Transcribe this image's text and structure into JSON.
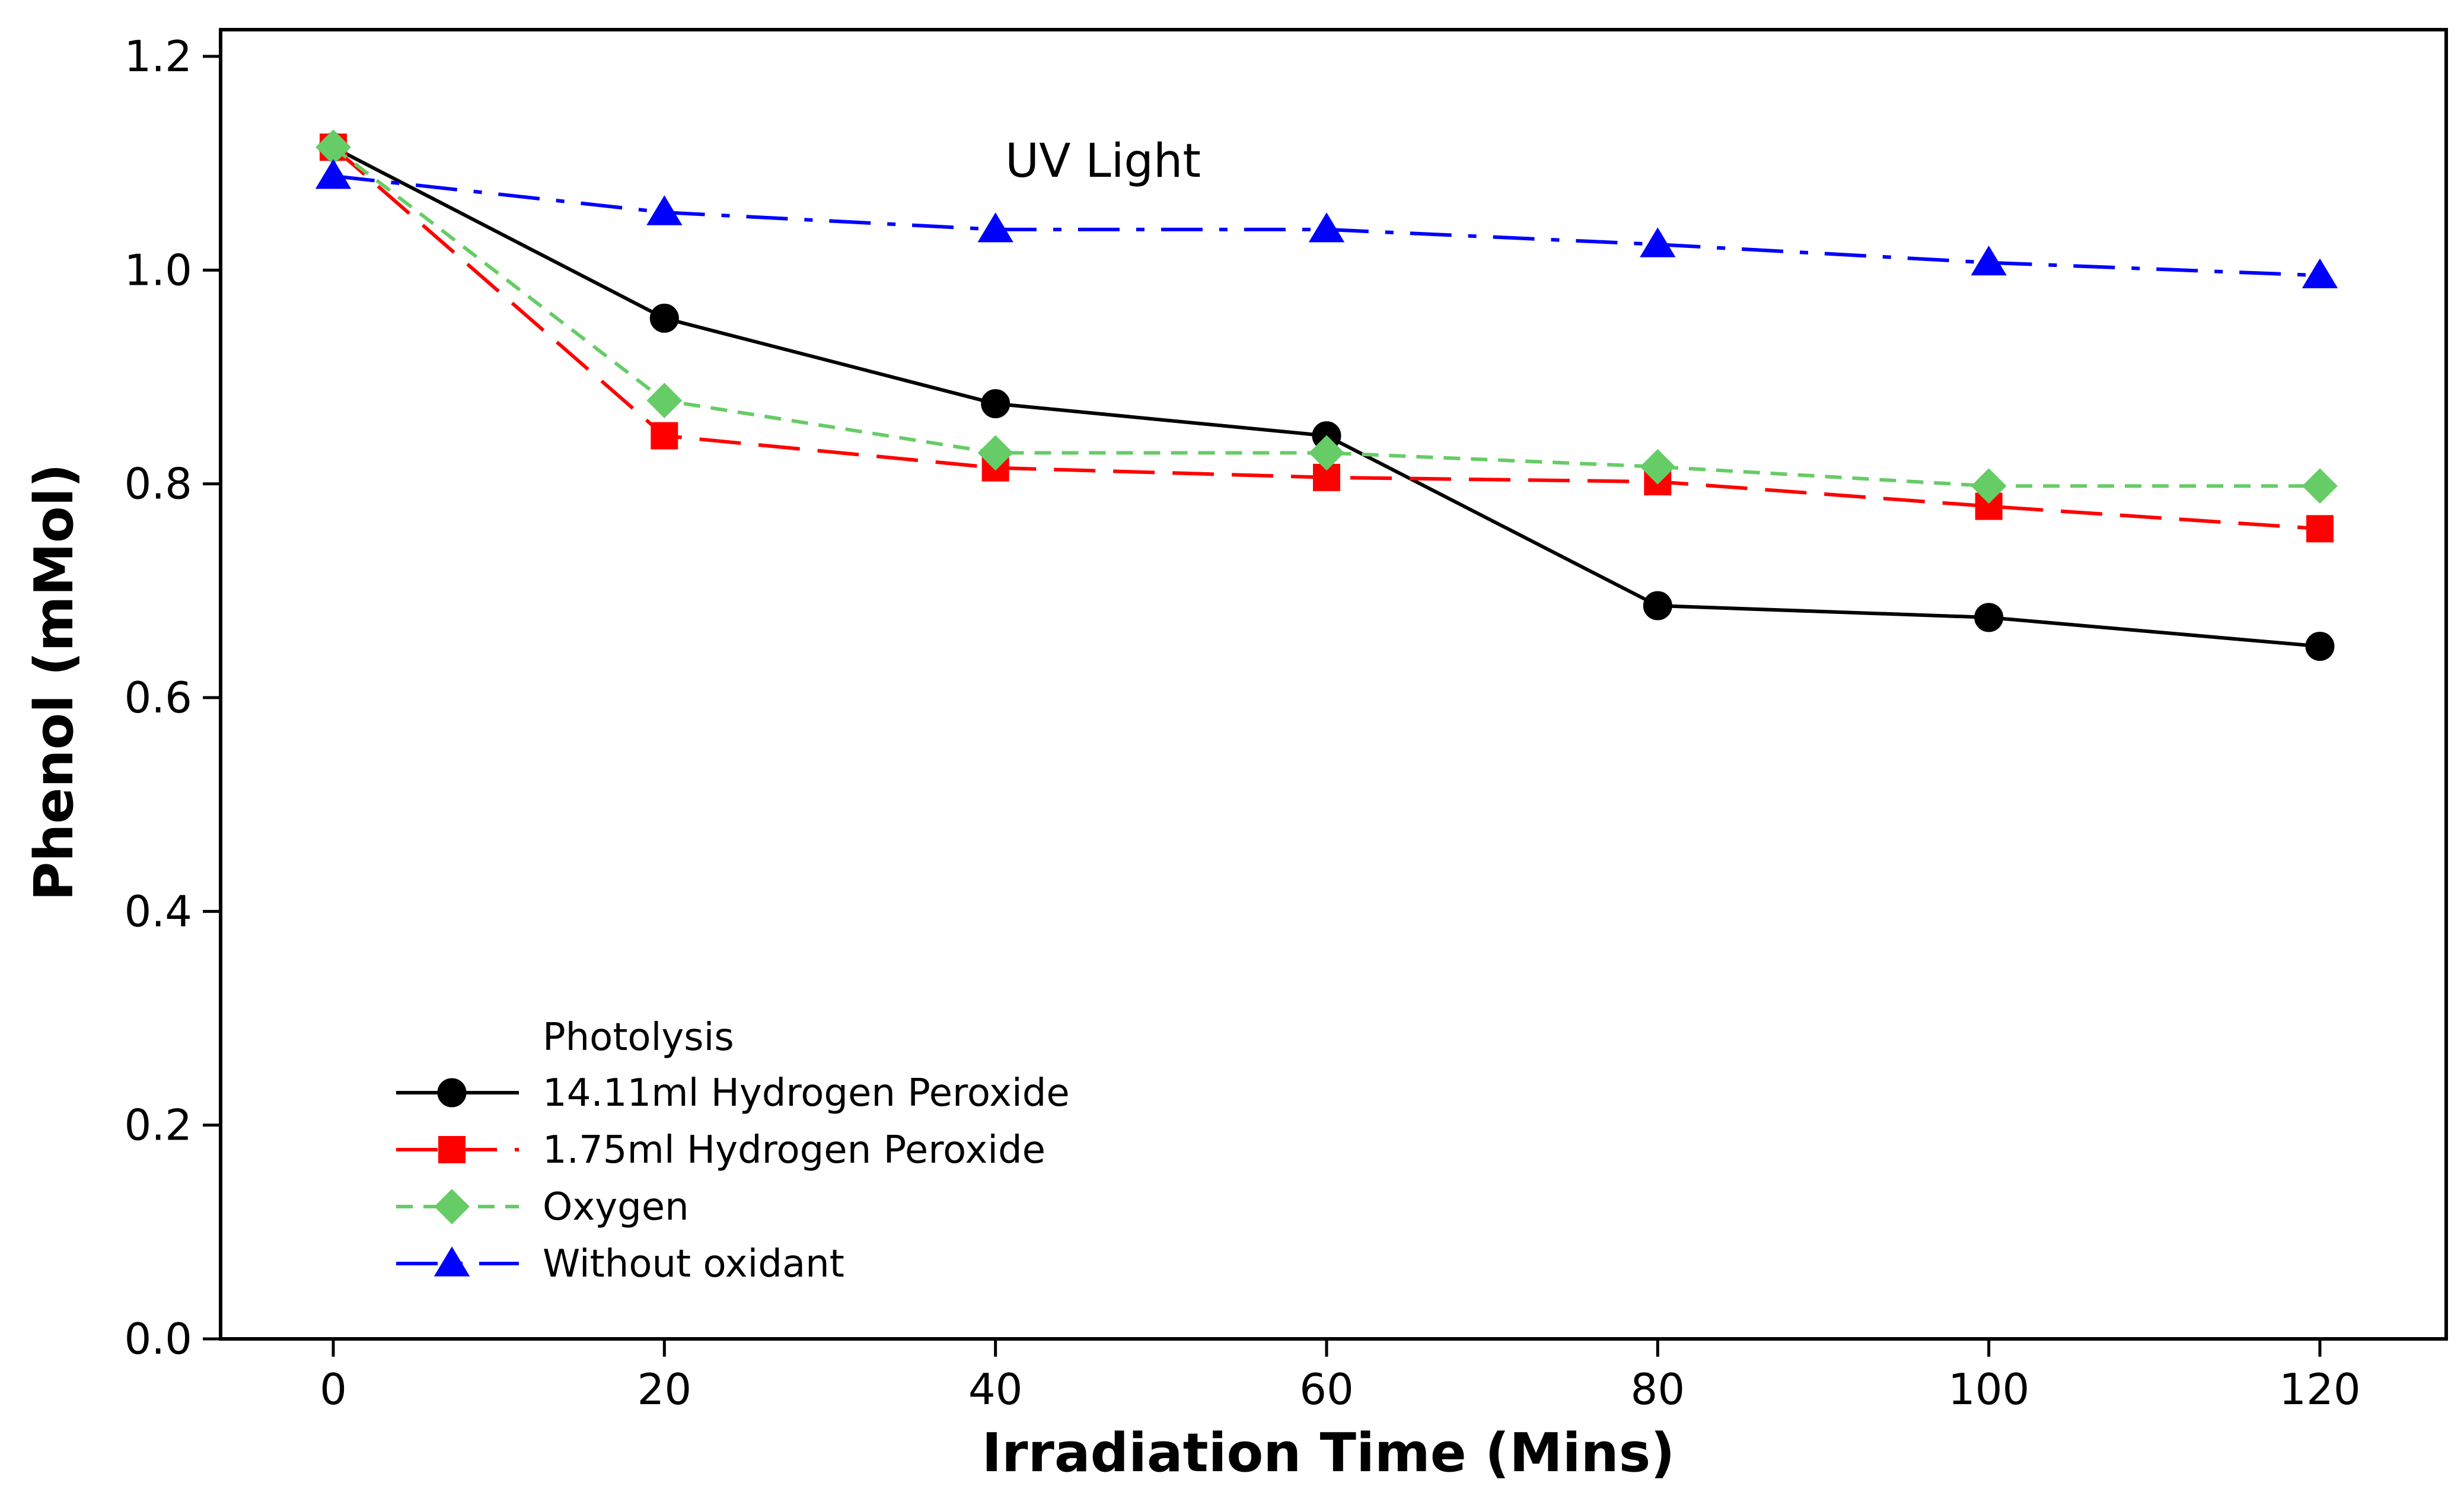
{
  "chart_data": {
    "type": "line",
    "title": "",
    "xlabel": "Irradiation Time (Mins)",
    "ylabel": "Phenol (mMol)",
    "xlim": [
      -7,
      127
    ],
    "ylim": [
      0,
      1.2
    ],
    "x_ticks": [
      "0",
      "20",
      "40",
      "60",
      "80",
      "100",
      "120"
    ],
    "y_ticks": [
      "0.0",
      "0.2",
      "0.4",
      "0.6",
      "0.8",
      "1.0",
      "1.2"
    ],
    "x": [
      0,
      20,
      40,
      60,
      80,
      100,
      120
    ],
    "grid": false,
    "annotation": "UV Light",
    "legend": {
      "title": "Photolysis",
      "placement": "lower-left"
    },
    "series": [
      {
        "name": "14.11ml Hydrogen Peroxide",
        "values": [
          1.115,
          0.955,
          0.875,
          0.845,
          0.686,
          0.675,
          0.648
        ],
        "color": "#000000",
        "marker": "circle",
        "line_style": "solid"
      },
      {
        "name": "1.75ml Hydrogen Peroxide",
        "values": [
          1.115,
          0.845,
          0.815,
          0.806,
          0.802,
          0.779,
          0.758
        ],
        "color": "#ff0000",
        "marker": "square",
        "line_style": "dashed"
      },
      {
        "name": "Oxygen",
        "values": [
          1.115,
          0.878,
          0.829,
          0.829,
          0.816,
          0.798,
          0.798
        ],
        "color": "#66cc66",
        "marker": "diamond",
        "line_style": "short-dashed"
      },
      {
        "name": "Without oxidant",
        "values": [
          1.088,
          1.054,
          1.038,
          1.038,
          1.024,
          1.007,
          0.995
        ],
        "color": "#0000ff",
        "marker": "triangle",
        "line_style": "dash-dot"
      }
    ]
  }
}
